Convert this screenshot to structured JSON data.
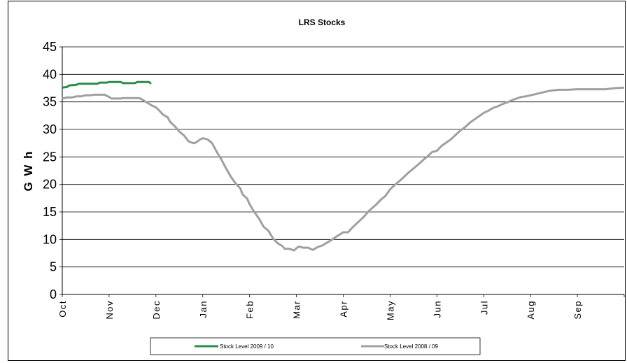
{
  "chart_data": {
    "type": "line",
    "title": "LRS Stocks",
    "xlabel": "",
    "ylabel": "G W h",
    "ylim": [
      0,
      45
    ],
    "yticks": [
      "0",
      "5",
      "10",
      "15",
      "20",
      "25",
      "30",
      "35",
      "40",
      "45"
    ],
    "categories": [
      "Oct",
      "Nov",
      "Dec",
      "Jan",
      "Feb",
      "Mar",
      "Apr",
      "May",
      "Jun",
      "Jul",
      "Aug",
      "Sep"
    ],
    "x_unit": "month index (0 = start of Oct, 12 = end of Sep)",
    "grid": true,
    "legend_position": "bottom",
    "series": [
      {
        "name": "Stock Level 2009 / 10",
        "color": "#2e8b4f",
        "points": [
          [
            0,
            37.6
          ],
          [
            0.1,
            37.7
          ],
          [
            0.15,
            38.0
          ],
          [
            0.3,
            38.1
          ],
          [
            0.35,
            38.3
          ],
          [
            0.75,
            38.3
          ],
          [
            0.8,
            38.5
          ],
          [
            0.95,
            38.5
          ],
          [
            1.0,
            38.6
          ],
          [
            1.25,
            38.6
          ],
          [
            1.3,
            38.4
          ],
          [
            1.55,
            38.4
          ],
          [
            1.6,
            38.6
          ],
          [
            1.85,
            38.6
          ],
          [
            1.9,
            38.3
          ]
        ]
      },
      {
        "name": "Stock Level 2008 / 09",
        "color": "#a0a0a0",
        "points": [
          [
            0,
            35.6
          ],
          [
            0.1,
            35.8
          ],
          [
            0.2,
            35.8
          ],
          [
            0.3,
            36.0
          ],
          [
            0.4,
            36.0
          ],
          [
            0.5,
            36.2
          ],
          [
            0.6,
            36.2
          ],
          [
            0.7,
            36.3
          ],
          [
            0.9,
            36.3
          ],
          [
            1.0,
            35.9
          ],
          [
            1.05,
            35.6
          ],
          [
            1.25,
            35.6
          ],
          [
            1.3,
            35.7
          ],
          [
            1.65,
            35.7
          ],
          [
            1.75,
            35.2
          ],
          [
            1.9,
            34.4
          ],
          [
            2.0,
            34.0
          ],
          [
            2.05,
            33.6
          ],
          [
            2.15,
            32.7
          ],
          [
            2.25,
            32.2
          ],
          [
            2.3,
            31.4
          ],
          [
            2.4,
            30.6
          ],
          [
            2.5,
            29.6
          ],
          [
            2.6,
            28.9
          ],
          [
            2.7,
            27.8
          ],
          [
            2.8,
            27.5
          ],
          [
            2.85,
            27.6
          ],
          [
            2.95,
            28.2
          ],
          [
            3.0,
            28.4
          ],
          [
            3.1,
            28.2
          ],
          [
            3.2,
            27.5
          ],
          [
            3.3,
            25.9
          ],
          [
            3.4,
            24.5
          ],
          [
            3.5,
            22.9
          ],
          [
            3.6,
            21.4
          ],
          [
            3.7,
            20.2
          ],
          [
            3.8,
            19.3
          ],
          [
            3.85,
            18.2
          ],
          [
            3.95,
            17.4
          ],
          [
            4.0,
            16.4
          ],
          [
            4.1,
            15.0
          ],
          [
            4.2,
            13.8
          ],
          [
            4.3,
            12.3
          ],
          [
            4.4,
            11.6
          ],
          [
            4.5,
            10.2
          ],
          [
            4.6,
            9.3
          ],
          [
            4.7,
            8.8
          ],
          [
            4.75,
            8.3
          ],
          [
            4.85,
            8.3
          ],
          [
            4.95,
            8.0
          ],
          [
            5.0,
            8.4
          ],
          [
            5.05,
            8.7
          ],
          [
            5.15,
            8.5
          ],
          [
            5.25,
            8.5
          ],
          [
            5.35,
            8.1
          ],
          [
            5.45,
            8.6
          ],
          [
            5.55,
            8.9
          ],
          [
            5.65,
            9.4
          ],
          [
            5.75,
            9.9
          ],
          [
            5.85,
            10.5
          ],
          [
            6.0,
            11.3
          ],
          [
            6.1,
            11.3
          ],
          [
            6.2,
            12.2
          ],
          [
            6.3,
            13.0
          ],
          [
            6.45,
            14.2
          ],
          [
            6.55,
            15.2
          ],
          [
            6.7,
            16.3
          ],
          [
            6.8,
            17.2
          ],
          [
            6.9,
            17.9
          ],
          [
            7.0,
            19.1
          ],
          [
            7.1,
            19.9
          ],
          [
            7.2,
            20.6
          ],
          [
            7.3,
            21.4
          ],
          [
            7.4,
            22.2
          ],
          [
            7.5,
            22.9
          ],
          [
            7.6,
            23.6
          ],
          [
            7.7,
            24.4
          ],
          [
            7.8,
            25.1
          ],
          [
            7.9,
            25.9
          ],
          [
            8.0,
            26.1
          ],
          [
            8.1,
            27.0
          ],
          [
            8.2,
            27.6
          ],
          [
            8.3,
            28.2
          ],
          [
            8.4,
            29.0
          ],
          [
            8.5,
            29.8
          ],
          [
            8.6,
            30.4
          ],
          [
            8.7,
            31.2
          ],
          [
            8.8,
            31.8
          ],
          [
            8.9,
            32.4
          ],
          [
            9.0,
            33.0
          ],
          [
            9.1,
            33.4
          ],
          [
            9.2,
            33.9
          ],
          [
            9.3,
            34.2
          ],
          [
            9.4,
            34.6
          ],
          [
            9.5,
            34.9
          ],
          [
            9.6,
            35.3
          ],
          [
            9.7,
            35.6
          ],
          [
            9.8,
            35.9
          ],
          [
            9.9,
            36.0
          ],
          [
            10.0,
            36.2
          ],
          [
            10.1,
            36.4
          ],
          [
            10.2,
            36.6
          ],
          [
            10.3,
            36.8
          ],
          [
            10.4,
            37.0
          ],
          [
            10.5,
            37.1
          ],
          [
            10.6,
            37.2
          ],
          [
            10.8,
            37.2
          ],
          [
            11.0,
            37.3
          ],
          [
            11.6,
            37.3
          ],
          [
            11.8,
            37.5
          ],
          [
            12.0,
            37.6
          ]
        ]
      }
    ]
  }
}
